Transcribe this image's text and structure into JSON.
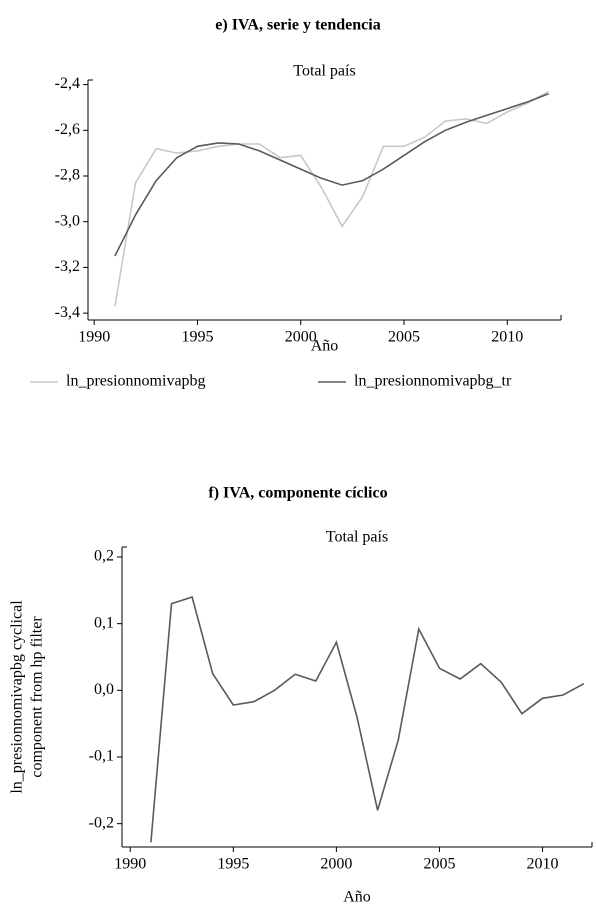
{
  "chart_data": [
    {
      "type": "line",
      "title": "e) IVA, serie y tendencia",
      "subtitle": "Total país",
      "xlabel": "Año",
      "x": [
        1991,
        1992,
        1993,
        1994,
        1995,
        1996,
        1997,
        1998,
        1999,
        2000,
        2001,
        2002,
        2003,
        2004,
        2005,
        2006,
        2007,
        2008,
        2009,
        2010,
        2011,
        2012
      ],
      "series": [
        {
          "name": "ln_presionnomivapbg",
          "color": "#c8c8c8",
          "values": [
            -3.37,
            -2.83,
            -2.68,
            -2.7,
            -2.69,
            -2.67,
            -2.66,
            -2.66,
            -2.72,
            -2.71,
            -2.85,
            -3.02,
            -2.89,
            -2.67,
            -2.67,
            -2.63,
            -2.56,
            -2.55,
            -2.57,
            -2.52,
            -2.48,
            -2.43
          ]
        },
        {
          "name": "ln_presionnomivapbg_tr",
          "color": "#5a5a5a",
          "values": [
            -3.15,
            -2.97,
            -2.82,
            -2.72,
            -2.67,
            -2.655,
            -2.66,
            -2.69,
            -2.73,
            -2.77,
            -2.81,
            -2.84,
            -2.82,
            -2.77,
            -2.71,
            -2.65,
            -2.6,
            -2.565,
            -2.535,
            -2.505,
            -2.475,
            -2.44
          ]
        }
      ],
      "xlim": [
        1989.7,
        2012.6
      ],
      "xticks": [
        1990,
        1995,
        2000,
        2005,
        2010
      ],
      "ylim": [
        -3.43,
        -2.38
      ],
      "yticks": [
        {
          "value": -3.4,
          "label": "-3,4"
        },
        {
          "value": -3.2,
          "label": "-3,2"
        },
        {
          "value": -3.0,
          "label": "-3,0"
        },
        {
          "value": -2.8,
          "label": "-2,8"
        },
        {
          "value": -2.6,
          "label": "-2,6"
        },
        {
          "value": -2.4,
          "label": "-2,4"
        }
      ]
    },
    {
      "type": "line",
      "title": "f) IVA, componente cíclico",
      "subtitle": "Total país",
      "xlabel": "Año",
      "ylabel": [
        "ln_presionnomivapbg cyclical",
        "component from hp filter"
      ],
      "x": [
        1991,
        1992,
        1993,
        1994,
        1995,
        1996,
        1997,
        1998,
        1999,
        2000,
        2001,
        2002,
        2003,
        2004,
        2005,
        2006,
        2007,
        2008,
        2009,
        2010,
        2011,
        2012
      ],
      "series": [
        {
          "color": "#5a5a5a",
          "values": [
            -0.228,
            0.13,
            0.14,
            0.025,
            -0.022,
            -0.017,
            0.0,
            0.024,
            0.014,
            0.072,
            -0.04,
            -0.18,
            -0.075,
            0.092,
            0.033,
            0.017,
            0.04,
            0.012,
            -0.035,
            -0.012,
            -0.007,
            0.01
          ]
        }
      ],
      "xlim": [
        1989.6,
        2012.4
      ],
      "xticks": [
        1990,
        1995,
        2000,
        2005,
        2010
      ],
      "ylim": [
        -0.235,
        0.215
      ],
      "yticks": [
        {
          "value": -0.2,
          "label": "-0,2"
        },
        {
          "value": -0.1,
          "label": "-0,1"
        },
        {
          "value": 0.0,
          "label": "0,0"
        },
        {
          "value": 0.1,
          "label": "0,1"
        },
        {
          "value": 0.2,
          "label": "0,2"
        }
      ]
    }
  ]
}
